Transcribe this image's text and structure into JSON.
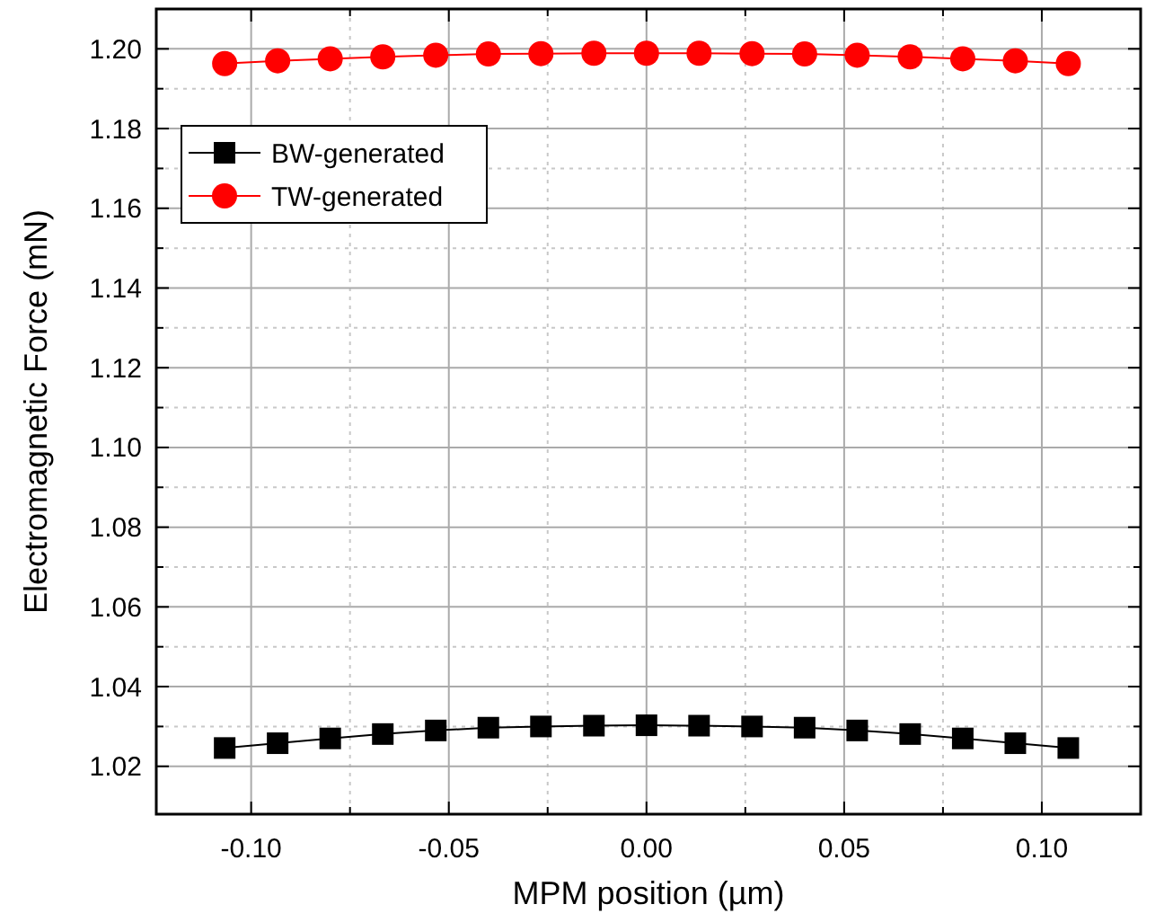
{
  "chart_data": {
    "type": "line",
    "xlabel": "MPM position (µm)",
    "ylabel": "Electromagnetic Force (mN)",
    "x": [
      -0.1067,
      -0.0933,
      -0.08,
      -0.0667,
      -0.0533,
      -0.04,
      -0.0267,
      -0.0133,
      0,
      0.0133,
      0.0267,
      0.04,
      0.0533,
      0.0667,
      0.08,
      0.0933,
      0.1067
    ],
    "series": [
      {
        "name": "BW-generated",
        "color": "#000000",
        "marker": "square",
        "values": [
          1.0246,
          1.0258,
          1.027,
          1.0281,
          1.029,
          1.0297,
          1.03,
          1.0302,
          1.0303,
          1.0302,
          1.03,
          1.0297,
          1.029,
          1.0281,
          1.027,
          1.0258,
          1.0246
        ]
      },
      {
        "name": "TW-generated",
        "color": "#ff0000",
        "marker": "circle",
        "values": [
          1.1963,
          1.197,
          1.1975,
          1.198,
          1.1984,
          1.1987,
          1.1988,
          1.1989,
          1.1989,
          1.1989,
          1.1988,
          1.1987,
          1.1984,
          1.198,
          1.1975,
          1.197,
          1.1963
        ]
      }
    ],
    "xlim": [
      -0.124,
      0.125
    ],
    "ylim": [
      1.008,
      1.21
    ],
    "xticks": [
      {
        "value": -0.1,
        "label": "-0.10"
      },
      {
        "value": -0.075,
        "label": null
      },
      {
        "value": -0.05,
        "label": "-0.05"
      },
      {
        "value": -0.025,
        "label": null
      },
      {
        "value": 0,
        "label": "0.00"
      },
      {
        "value": 0.025,
        "label": null
      },
      {
        "value": 0.05,
        "label": "0.05"
      },
      {
        "value": 0.075,
        "label": null
      },
      {
        "value": 0.1,
        "label": "0.10"
      }
    ],
    "yticks": [
      {
        "value": 1.02,
        "label": "1.02"
      },
      {
        "value": 1.03,
        "label": null
      },
      {
        "value": 1.04,
        "label": "1.04"
      },
      {
        "value": 1.05,
        "label": null
      },
      {
        "value": 1.06,
        "label": "1.06"
      },
      {
        "value": 1.07,
        "label": null
      },
      {
        "value": 1.08,
        "label": "1.08"
      },
      {
        "value": 1.09,
        "label": null
      },
      {
        "value": 1.1,
        "label": "1.10"
      },
      {
        "value": 1.11,
        "label": null
      },
      {
        "value": 1.12,
        "label": "1.12"
      },
      {
        "value": 1.13,
        "label": null
      },
      {
        "value": 1.14,
        "label": "1.14"
      },
      {
        "value": 1.15,
        "label": null
      },
      {
        "value": 1.16,
        "label": "1.16"
      },
      {
        "value": 1.17,
        "label": null
      },
      {
        "value": 1.18,
        "label": "1.18"
      },
      {
        "value": 1.19,
        "label": null
      },
      {
        "value": 1.2,
        "label": "1.20"
      }
    ],
    "grid": true,
    "legend": "top left",
    "line_style": "solid"
  }
}
